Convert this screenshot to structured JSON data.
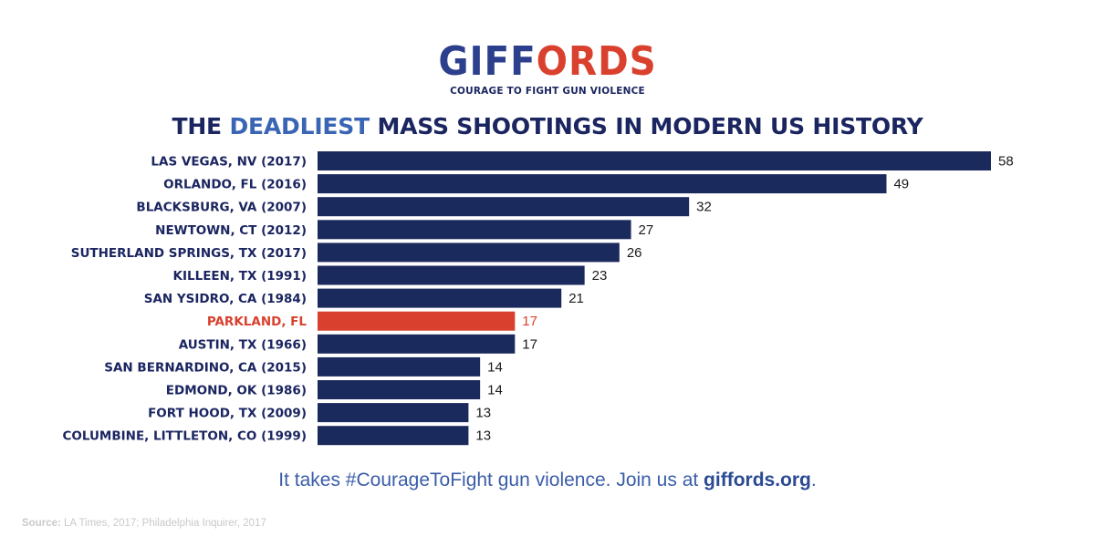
{
  "logo": {
    "part1": "GIFF",
    "part2": "ORDS",
    "tagline": "COURAGE TO FIGHT GUN VIOLENCE"
  },
  "title": {
    "before": "THE ",
    "highlight": "DEADLIEST",
    "after": " MASS SHOOTINGS IN MODERN US HISTORY"
  },
  "footer": {
    "text": "It takes #CourageToFight gun violence. Join us at ",
    "link": "giffords.org",
    "end": "."
  },
  "source": {
    "label": "Source:",
    "text": " LA Times, 2017; Philadelphia Inquirer, 2017"
  },
  "colors": {
    "bar": "#1b2a5c",
    "highlight": "#d9412e",
    "label": "#1b2560"
  },
  "chart_data": {
    "type": "bar",
    "orientation": "horizontal",
    "categories": [
      "LAS VEGAS, NV (2017)",
      "ORLANDO, FL (2016)",
      "BLACKSBURG, VA (2007)",
      "NEWTOWN, CT (2012)",
      "SUTHERLAND SPRINGS, TX (2017)",
      "KILLEEN, TX (1991)",
      "SAN YSIDRO, CA (1984)",
      "PARKLAND, FL",
      "AUSTIN, TX (1966)",
      "SAN BERNARDINO, CA (2015)",
      "EDMOND, OK (1986)",
      "FORT HOOD, TX (2009)",
      "COLUMBINE, LITTLETON, CO (1999)"
    ],
    "values": [
      58,
      49,
      32,
      27,
      26,
      23,
      21,
      17,
      17,
      14,
      14,
      13,
      13
    ],
    "highlighted_category": "PARKLAND, FL",
    "xlim": [
      0,
      58
    ],
    "grid": false,
    "legend": "none"
  }
}
